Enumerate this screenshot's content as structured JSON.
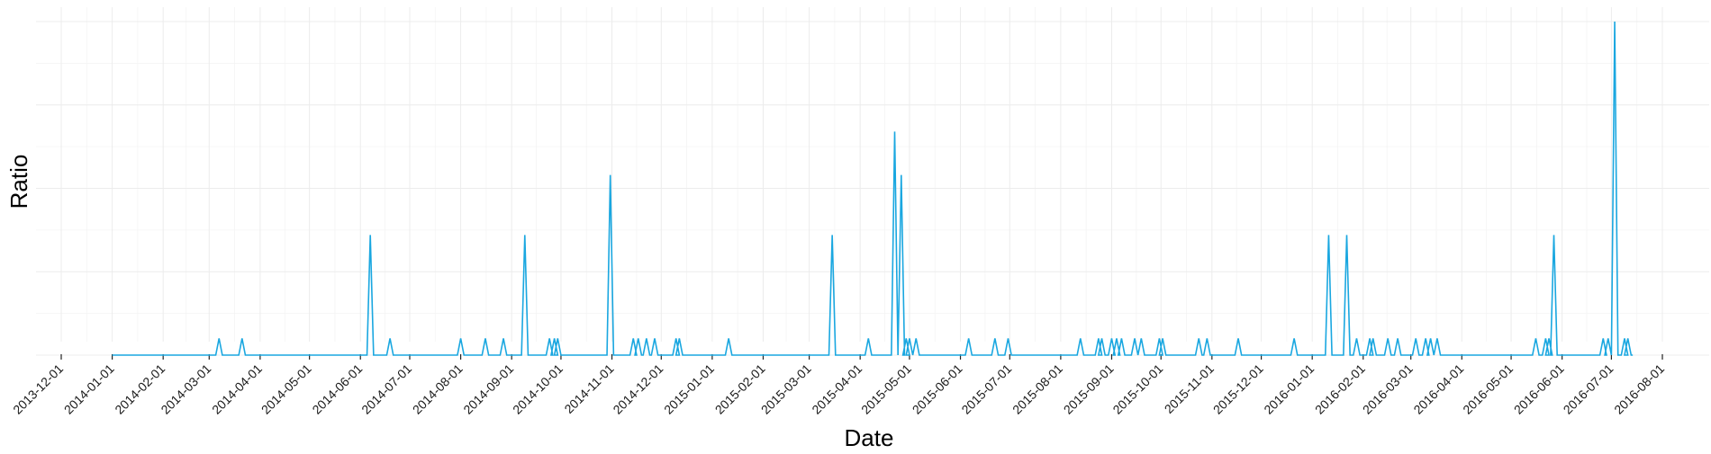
{
  "chart_data": {
    "type": "line",
    "xlabel": "Date",
    "ylabel": "Ratio",
    "x_axis_type": "date",
    "xlim": [
      "2013-12-01",
      "2016-08-01"
    ],
    "ylim": [
      0,
      1.05
    ],
    "y_tick_labels": false,
    "grid": true,
    "legend": "none",
    "line_color": "#1aa7e0",
    "grid_color": "#ececec",
    "x_ticks": [
      "2013-12-01",
      "2014-01-01",
      "2014-02-01",
      "2014-03-01",
      "2014-04-01",
      "2014-05-01",
      "2014-06-01",
      "2014-07-01",
      "2014-08-01",
      "2014-09-01",
      "2014-10-01",
      "2014-11-01",
      "2014-12-01",
      "2015-01-01",
      "2015-02-01",
      "2015-03-01",
      "2015-04-01",
      "2015-05-01",
      "2015-06-01",
      "2015-07-01",
      "2015-08-01",
      "2015-09-01",
      "2015-10-01",
      "2015-11-01",
      "2015-12-01",
      "2016-01-01",
      "2016-02-01",
      "2016-03-01",
      "2016-04-01",
      "2016-05-01",
      "2016-06-01",
      "2016-07-01",
      "2016-08-01"
    ],
    "baseline": 0,
    "series_start": "2014-01-01",
    "series_end": "2016-07-14",
    "spikes": [
      {
        "date": "2014-03-07",
        "value": 0.05
      },
      {
        "date": "2014-03-21",
        "value": 0.05
      },
      {
        "date": "2014-06-07",
        "value": 0.36
      },
      {
        "date": "2014-06-19",
        "value": 0.05
      },
      {
        "date": "2014-08-01",
        "value": 0.05
      },
      {
        "date": "2014-08-16",
        "value": 0.05
      },
      {
        "date": "2014-08-27",
        "value": 0.05
      },
      {
        "date": "2014-09-09",
        "value": 0.36
      },
      {
        "date": "2014-09-24",
        "value": 0.05
      },
      {
        "date": "2014-09-27",
        "value": 0.05
      },
      {
        "date": "2014-09-29",
        "value": 0.05
      },
      {
        "date": "2014-10-31",
        "value": 0.54
      },
      {
        "date": "2014-11-14",
        "value": 0.05
      },
      {
        "date": "2014-11-17",
        "value": 0.05
      },
      {
        "date": "2014-11-22",
        "value": 0.05
      },
      {
        "date": "2014-11-27",
        "value": 0.05
      },
      {
        "date": "2014-12-10",
        "value": 0.05
      },
      {
        "date": "2014-12-12",
        "value": 0.05
      },
      {
        "date": "2015-01-11",
        "value": 0.05
      },
      {
        "date": "2015-03-15",
        "value": 0.36
      },
      {
        "date": "2015-04-06",
        "value": 0.05
      },
      {
        "date": "2015-04-22",
        "value": 0.67
      },
      {
        "date": "2015-04-26",
        "value": 0.54
      },
      {
        "date": "2015-04-29",
        "value": 0.05
      },
      {
        "date": "2015-05-01",
        "value": 0.05
      },
      {
        "date": "2015-05-05",
        "value": 0.05
      },
      {
        "date": "2015-06-06",
        "value": 0.05
      },
      {
        "date": "2015-06-22",
        "value": 0.05
      },
      {
        "date": "2015-06-30",
        "value": 0.05
      },
      {
        "date": "2015-08-13",
        "value": 0.05
      },
      {
        "date": "2015-08-24",
        "value": 0.05
      },
      {
        "date": "2015-08-26",
        "value": 0.05
      },
      {
        "date": "2015-09-01",
        "value": 0.05
      },
      {
        "date": "2015-09-04",
        "value": 0.05
      },
      {
        "date": "2015-09-07",
        "value": 0.05
      },
      {
        "date": "2015-09-15",
        "value": 0.05
      },
      {
        "date": "2015-09-19",
        "value": 0.05
      },
      {
        "date": "2015-09-30",
        "value": 0.05
      },
      {
        "date": "2015-10-02",
        "value": 0.05
      },
      {
        "date": "2015-10-24",
        "value": 0.05
      },
      {
        "date": "2015-10-29",
        "value": 0.05
      },
      {
        "date": "2015-11-17",
        "value": 0.05
      },
      {
        "date": "2015-12-21",
        "value": 0.05
      },
      {
        "date": "2016-01-11",
        "value": 0.36
      },
      {
        "date": "2016-01-22",
        "value": 0.36
      },
      {
        "date": "2016-01-28",
        "value": 0.05
      },
      {
        "date": "2016-02-05",
        "value": 0.05
      },
      {
        "date": "2016-02-07",
        "value": 0.05
      },
      {
        "date": "2016-02-16",
        "value": 0.05
      },
      {
        "date": "2016-02-22",
        "value": 0.05
      },
      {
        "date": "2016-03-04",
        "value": 0.05
      },
      {
        "date": "2016-03-10",
        "value": 0.05
      },
      {
        "date": "2016-03-13",
        "value": 0.05
      },
      {
        "date": "2016-03-17",
        "value": 0.05
      },
      {
        "date": "2016-05-16",
        "value": 0.05
      },
      {
        "date": "2016-05-22",
        "value": 0.05
      },
      {
        "date": "2016-05-24",
        "value": 0.05
      },
      {
        "date": "2016-05-27",
        "value": 0.36
      },
      {
        "date": "2016-06-26",
        "value": 0.05
      },
      {
        "date": "2016-06-29",
        "value": 0.05
      },
      {
        "date": "2016-07-03",
        "value": 1.0
      },
      {
        "date": "2016-07-09",
        "value": 0.05
      },
      {
        "date": "2016-07-11",
        "value": 0.05
      }
    ]
  }
}
